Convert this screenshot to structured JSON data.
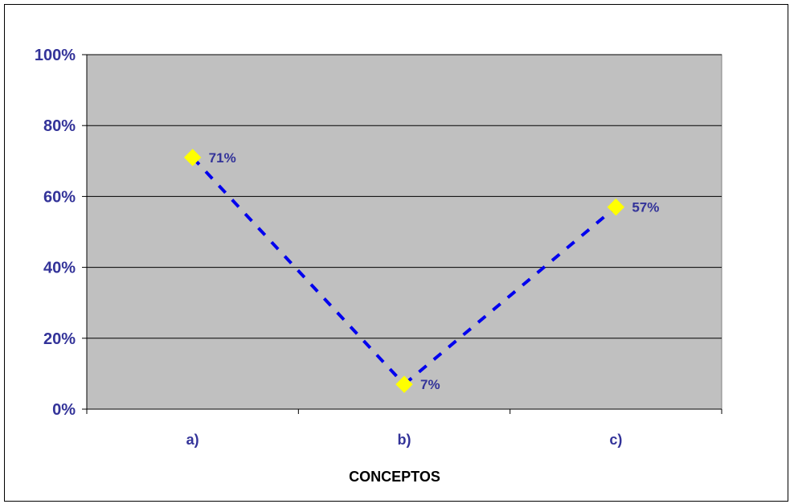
{
  "chart_data": {
    "type": "line",
    "categories": [
      "a)",
      "b)",
      "c)"
    ],
    "series": [
      {
        "values": [
          71,
          7,
          57
        ]
      }
    ],
    "data_labels": [
      "71%",
      "7%",
      "57%"
    ],
    "xlabel": "CONCEPTOS",
    "ylabel": "",
    "ylim": [
      0,
      100
    ],
    "y_ticks": [
      0,
      20,
      40,
      60,
      80,
      100
    ],
    "y_tick_labels": [
      "0%",
      "20%",
      "40%",
      "60%",
      "80%",
      "100%"
    ],
    "grid": true,
    "legend": "none",
    "colors": {
      "plot_background": "#c0c0c0",
      "line": "#0000ee",
      "marker": "#ffff00",
      "text": "#333399",
      "gridline": "#000000"
    }
  }
}
